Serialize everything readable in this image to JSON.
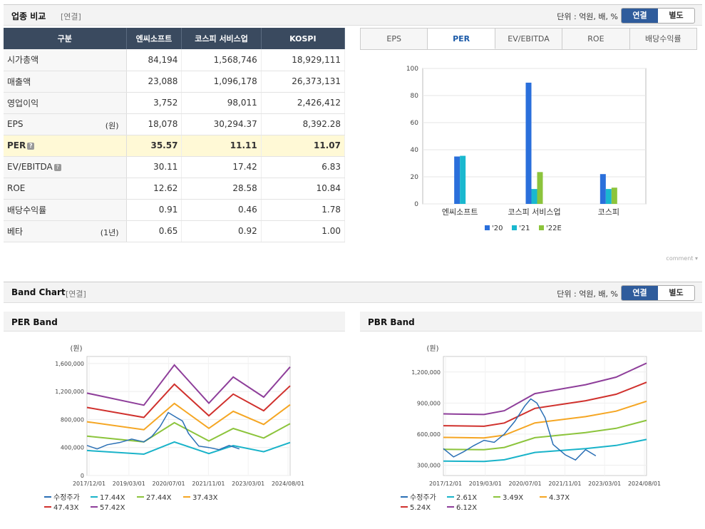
{
  "compare": {
    "title": "업종 비교",
    "sub": "[연결]",
    "unit": "단위 : 억원, 배, %",
    "toggle_on": "연결",
    "toggle_off": "별도",
    "headers": [
      "구분",
      "엔씨소프트",
      "코스피 서비스업",
      "KOSPI"
    ],
    "rows": [
      {
        "label": "시가총액",
        "unit": "",
        "values": [
          "84,194",
          "1,568,746",
          "18,929,111"
        ],
        "q": false,
        "hl": false
      },
      {
        "label": "매출액",
        "unit": "",
        "values": [
          "23,088",
          "1,096,178",
          "26,373,131"
        ],
        "q": false,
        "hl": false
      },
      {
        "label": "영업이익",
        "unit": "",
        "values": [
          "3,752",
          "98,011",
          "2,426,412"
        ],
        "q": false,
        "hl": false
      },
      {
        "label": "EPS",
        "unit": "(원)",
        "values": [
          "18,078",
          "30,294.37",
          "8,392.28"
        ],
        "q": false,
        "hl": false
      },
      {
        "label": "PER",
        "unit": "",
        "values": [
          "35.57",
          "11.11",
          "11.07"
        ],
        "q": true,
        "hl": true
      },
      {
        "label": "EV/EBITDA",
        "unit": "",
        "values": [
          "30.11",
          "17.42",
          "6.83"
        ],
        "q": true,
        "hl": false
      },
      {
        "label": "ROE",
        "unit": "",
        "values": [
          "12.62",
          "28.58",
          "10.84"
        ],
        "q": false,
        "hl": false
      },
      {
        "label": "배당수익률",
        "unit": "",
        "values": [
          "0.91",
          "0.46",
          "1.78"
        ],
        "q": false,
        "hl": false
      },
      {
        "label": "베타",
        "unit": "(1년)",
        "values": [
          "0.65",
          "0.92",
          "1.00"
        ],
        "q": false,
        "hl": false
      }
    ],
    "tabs": [
      "EPS",
      "PER",
      "EV/EBITDA",
      "ROE",
      "배당수익률"
    ],
    "active_tab": "PER",
    "comment": "comment ▾"
  },
  "band": {
    "title": "Band Chart",
    "sub": "[연결]",
    "unit": "단위 : 억원, 배, %",
    "toggle_on": "연결",
    "toggle_off": "별도",
    "per_title": "PER Band",
    "pbr_title": "PBR Band"
  },
  "chart_data": [
    {
      "type": "bar",
      "categories": [
        "엔씨소프트",
        "코스피 서비스업",
        "코스피"
      ],
      "series": [
        {
          "name": "'20",
          "values": [
            35,
            89.5,
            22
          ],
          "color": "#2a6fdb"
        },
        {
          "name": "'21",
          "values": [
            35.5,
            11,
            11
          ],
          "color": "#1ab8cf"
        },
        {
          "name": "'22E",
          "values": [
            null,
            23.5,
            12
          ],
          "color": "#8cc43c"
        }
      ],
      "ylim": [
        0,
        100
      ],
      "yticks": [
        0,
        20,
        40,
        60,
        80,
        100
      ]
    },
    {
      "type": "line",
      "ylabel": "(원)",
      "x_ticks": [
        "2017/12/01",
        "2019/03/01",
        "2020/07/01",
        "2021/11/01",
        "2023/03/01",
        "2024/08/01"
      ],
      "yticks": [
        "0",
        "400,000",
        "800,000",
        "1,200,000",
        "1,600,000"
      ],
      "ylim": [
        0,
        1700000
      ],
      "series": [
        {
          "name": "수정주가",
          "color": "#2a6fb5"
        },
        {
          "name": "17.44X",
          "color": "#19b3c9"
        },
        {
          "name": "27.44X",
          "color": "#8cc43c"
        },
        {
          "name": "37.43X",
          "color": "#f5a623"
        },
        {
          "name": "47.43X",
          "color": "#d0312d"
        },
        {
          "name": "57.42X",
          "color": "#8e3e9a"
        }
      ]
    },
    {
      "type": "line",
      "ylabel": "(원)",
      "x_ticks": [
        "2017/12/01",
        "2019/03/01",
        "2020/07/01",
        "2021/11/01",
        "2023/03/01",
        "2024/08/01"
      ],
      "yticks": [
        "300,000",
        "600,000",
        "900,000",
        "1,200,000"
      ],
      "ylim": [
        200000,
        1350000
      ],
      "series": [
        {
          "name": "수정주가",
          "color": "#2a6fb5"
        },
        {
          "name": "2.61X",
          "color": "#19b3c9"
        },
        {
          "name": "3.49X",
          "color": "#8cc43c"
        },
        {
          "name": "4.37X",
          "color": "#f5a623"
        },
        {
          "name": "5.24X",
          "color": "#d0312d"
        },
        {
          "name": "6.12X",
          "color": "#8e3e9a"
        }
      ]
    }
  ]
}
